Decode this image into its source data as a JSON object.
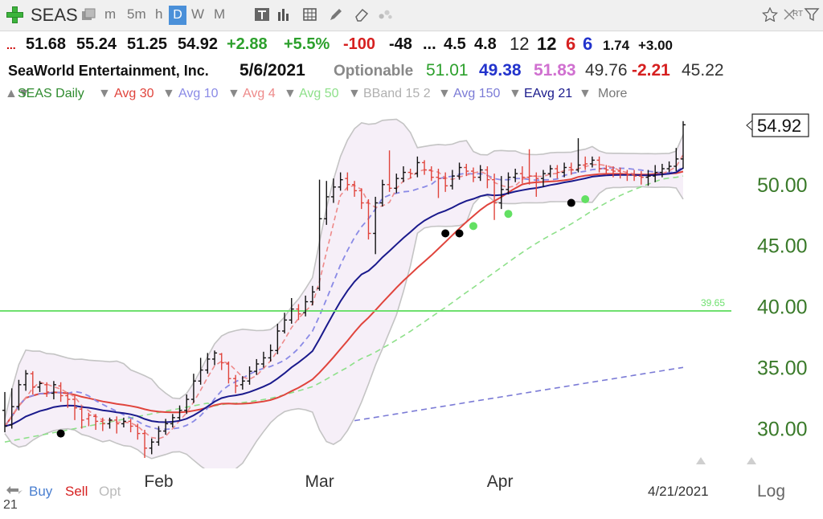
{
  "toolbar": {
    "symbol": "SEAS",
    "intervals": [
      "m",
      "5m",
      "h",
      "D",
      "W",
      "M"
    ],
    "active_interval": "D",
    "icons": [
      "plus-icon",
      "copy-icon",
      "text-tool-icon",
      "bar-chart-icon",
      "grid-icon",
      "pencil-icon",
      "eraser-icon",
      "dots-icon",
      "star-icon",
      "settings-icon",
      "rt-icon",
      "funnel-icon"
    ],
    "rt_label": "RT"
  },
  "quote": {
    "prefix": "...",
    "open": "51.68",
    "high": "55.24",
    "low": "51.25",
    "close": "54.92",
    "change": "+2.88",
    "change_pct": "+5.5%",
    "v1": "-100",
    "v2": "-48",
    "sep": "...",
    "v3": "4.5",
    "v4": "4.8",
    "v5": "12",
    "v6": "12",
    "v7": "6",
    "v8": "6",
    "v9": "1.74",
    "v10": "+3.00"
  },
  "info": {
    "company": "SeaWorld Entertainment, Inc.",
    "date": "5/6/2021",
    "optionable": "Optionable",
    "p1": "51.01",
    "p2": "49.38",
    "p3": "51.83",
    "p4": "49.76",
    "p5": "-2.21",
    "p6": "45.22"
  },
  "legend": {
    "items": [
      "SEAS Daily",
      "Avg 30",
      "Avg 10",
      "Avg 4",
      "Avg 50",
      "BBand 15 2",
      "Avg 150",
      "EAvg 21",
      "More"
    ],
    "colors": [
      "#2e8b2e",
      "#e0443c",
      "#8a8ae6",
      "#ee8a8a",
      "#8ee08a",
      "#b0b0b0",
      "#7b7bd6",
      "#1a1a8c",
      "#777777"
    ]
  },
  "chart_data": {
    "type": "candlestick",
    "y_axis": {
      "ticks": [
        "30.00",
        "35.00",
        "40.00",
        "45.00",
        "50.00"
      ],
      "min": 27.4,
      "max": 56.7,
      "side": "right"
    },
    "x_ticks": [
      "Feb",
      "Mar",
      "Apr"
    ],
    "last_price": "54.92",
    "hline": {
      "value": 39.65,
      "label": "39.65",
      "color": "#6fe06f"
    },
    "date_label": "4/21/2021",
    "bars": [
      [
        31.5,
        30.2,
        33.0,
        29.7,
        "up"
      ],
      [
        30.3,
        31.8,
        33.3,
        30.0,
        "up"
      ],
      [
        31.8,
        33.6,
        34.0,
        31.5,
        "up"
      ],
      [
        33.6,
        34.5,
        34.8,
        33.1,
        "up"
      ],
      [
        34.5,
        33.4,
        34.7,
        32.8,
        "down"
      ],
      [
        33.4,
        33.7,
        33.9,
        33.0,
        "up"
      ],
      [
        33.6,
        33.0,
        33.8,
        32.6,
        "down"
      ],
      [
        32.9,
        33.6,
        33.9,
        32.4,
        "up"
      ],
      [
        33.5,
        32.7,
        33.8,
        32.2,
        "down"
      ],
      [
        32.7,
        32.4,
        33.0,
        31.7,
        "down"
      ],
      [
        32.4,
        31.7,
        32.8,
        30.7,
        "down"
      ],
      [
        31.6,
        30.7,
        31.8,
        30.0,
        "down"
      ],
      [
        30.8,
        31.1,
        31.3,
        30.2,
        "down"
      ],
      [
        31.0,
        30.6,
        31.2,
        29.9,
        "down"
      ],
      [
        30.6,
        30.4,
        30.9,
        29.8,
        "down"
      ],
      [
        30.4,
        30.7,
        30.9,
        30.0,
        "up"
      ],
      [
        30.7,
        30.4,
        31.0,
        29.6,
        "down"
      ],
      [
        30.4,
        30.6,
        30.9,
        30.1,
        "up"
      ],
      [
        30.6,
        30.2,
        30.8,
        29.7,
        "down"
      ],
      [
        30.2,
        29.6,
        30.4,
        29.1,
        "down"
      ],
      [
        29.6,
        28.4,
        29.9,
        27.6,
        "down"
      ],
      [
        28.4,
        28.9,
        29.2,
        27.9,
        "up"
      ],
      [
        28.9,
        29.8,
        30.2,
        28.6,
        "up"
      ],
      [
        29.8,
        30.4,
        30.8,
        29.5,
        "up"
      ],
      [
        30.4,
        30.9,
        31.2,
        30.1,
        "up"
      ],
      [
        30.9,
        31.5,
        31.9,
        30.7,
        "up"
      ],
      [
        31.5,
        32.4,
        32.8,
        31.2,
        "up"
      ],
      [
        32.4,
        33.9,
        34.5,
        32.1,
        "up"
      ],
      [
        33.9,
        34.8,
        35.8,
        33.6,
        "up"
      ],
      [
        34.8,
        35.7,
        36.2,
        34.5,
        "up"
      ],
      [
        35.7,
        36.2,
        36.4,
        35.2,
        "up"
      ],
      [
        36.1,
        35.4,
        36.2,
        34.8,
        "down"
      ],
      [
        35.3,
        34.1,
        35.5,
        33.7,
        "down"
      ],
      [
        34.1,
        33.5,
        34.4,
        32.9,
        "down"
      ],
      [
        33.6,
        33.9,
        34.3,
        33.2,
        "up"
      ],
      [
        33.9,
        34.7,
        35.1,
        33.6,
        "up"
      ],
      [
        34.7,
        35.3,
        35.7,
        34.4,
        "up"
      ],
      [
        35.3,
        35.8,
        36.3,
        35.0,
        "up"
      ],
      [
        35.8,
        36.4,
        36.9,
        35.5,
        "up"
      ],
      [
        36.4,
        38.0,
        38.6,
        36.1,
        "up"
      ],
      [
        38.0,
        38.9,
        39.5,
        37.8,
        "up"
      ],
      [
        38.9,
        39.8,
        40.7,
        38.6,
        "up"
      ],
      [
        39.8,
        39.4,
        40.2,
        38.9,
        "down"
      ],
      [
        39.5,
        40.4,
        40.9,
        39.2,
        "up"
      ],
      [
        40.4,
        41.2,
        41.7,
        40.1,
        "up"
      ],
      [
        41.5,
        47.2,
        50.4,
        41.3,
        "up"
      ],
      [
        47.2,
        49.0,
        50.3,
        46.7,
        "up"
      ],
      [
        49.0,
        49.8,
        50.5,
        48.5,
        "up"
      ],
      [
        49.8,
        50.4,
        51.0,
        49.5,
        "up"
      ],
      [
        50.5,
        50.0,
        51.0,
        49.5,
        "down"
      ],
      [
        50.0,
        49.5,
        50.3,
        49.0,
        "down"
      ],
      [
        49.5,
        48.5,
        49.7,
        48.0,
        "down"
      ],
      [
        48.5,
        46.0,
        48.8,
        45.5,
        "down"
      ],
      [
        46.0,
        48.5,
        49.0,
        44.3,
        "up"
      ],
      [
        48.5,
        50.0,
        50.4,
        48.2,
        "up"
      ],
      [
        50.0,
        49.7,
        52.8,
        49.4,
        "down"
      ],
      [
        49.7,
        50.5,
        50.9,
        49.3,
        "up"
      ],
      [
        50.5,
        51.0,
        51.5,
        50.2,
        "up"
      ],
      [
        51.0,
        50.9,
        51.3,
        50.5,
        "down"
      ],
      [
        50.9,
        51.8,
        52.3,
        50.6,
        "up"
      ],
      [
        51.8,
        51.2,
        52.0,
        50.8,
        "down"
      ],
      [
        51.2,
        50.6,
        51.5,
        50.3,
        "down"
      ],
      [
        50.6,
        50.5,
        51.3,
        48.9,
        "down"
      ],
      [
        50.5,
        49.9,
        51.0,
        49.4,
        "down"
      ],
      [
        49.9,
        50.7,
        51.2,
        49.6,
        "up"
      ],
      [
        50.7,
        51.4,
        51.8,
        50.4,
        "up"
      ],
      [
        51.4,
        51.1,
        51.7,
        50.7,
        "down"
      ],
      [
        51.1,
        50.6,
        51.4,
        50.2,
        "down"
      ],
      [
        50.6,
        51.2,
        51.6,
        50.3,
        "up"
      ],
      [
        51.2,
        50.4,
        51.5,
        49.7,
        "down"
      ],
      [
        50.4,
        48.5,
        50.9,
        47.1,
        "down"
      ],
      [
        48.5,
        49.6,
        50.7,
        48.0,
        "up"
      ],
      [
        49.6,
        50.6,
        51.0,
        49.2,
        "up"
      ],
      [
        50.6,
        50.9,
        51.3,
        50.2,
        "up"
      ],
      [
        50.9,
        50.6,
        51.5,
        50.1,
        "down"
      ],
      [
        50.6,
        50.7,
        52.9,
        50.0,
        "down"
      ],
      [
        50.7,
        50.5,
        51.0,
        49.0,
        "down"
      ],
      [
        50.5,
        50.9,
        51.2,
        49.8,
        "up"
      ],
      [
        50.9,
        51.3,
        51.6,
        50.6,
        "up"
      ],
      [
        51.3,
        51.0,
        51.6,
        50.5,
        "down"
      ],
      [
        51.0,
        51.4,
        51.8,
        50.6,
        "up"
      ],
      [
        51.4,
        51.2,
        51.8,
        50.8,
        "down"
      ],
      [
        51.2,
        51.6,
        53.8,
        51.0,
        "up"
      ],
      [
        51.6,
        51.7,
        52.3,
        51.2,
        "down"
      ],
      [
        51.7,
        52.0,
        52.3,
        51.4,
        "up"
      ],
      [
        52.0,
        51.3,
        52.3,
        51.0,
        "down"
      ],
      [
        51.3,
        51.2,
        51.6,
        50.8,
        "down"
      ],
      [
        51.2,
        51.1,
        51.5,
        50.6,
        "down"
      ],
      [
        51.1,
        50.9,
        51.4,
        50.5,
        "down"
      ],
      [
        50.9,
        50.8,
        51.2,
        50.3,
        "down"
      ],
      [
        50.8,
        50.7,
        51.2,
        50.3,
        "down"
      ],
      [
        50.7,
        50.6,
        51.1,
        50.0,
        "down"
      ],
      [
        50.6,
        50.7,
        51.2,
        49.9,
        "up"
      ],
      [
        50.7,
        51.0,
        51.6,
        50.2,
        "up"
      ],
      [
        51.0,
        51.3,
        51.7,
        50.6,
        "up"
      ],
      [
        51.3,
        51.5,
        51.9,
        51.0,
        "up"
      ],
      [
        51.5,
        52.1,
        53.0,
        51.1,
        "up"
      ],
      [
        52.1,
        54.9,
        55.2,
        51.3,
        "up"
      ]
    ],
    "markers": [
      {
        "i": 8,
        "v": 29.6,
        "color": "#000000"
      },
      {
        "i": 63,
        "v": 46.0,
        "color": "#000000"
      },
      {
        "i": 65,
        "v": 46.0,
        "color": "#000000"
      },
      {
        "i": 67,
        "v": 46.6,
        "color": "#63e063"
      },
      {
        "i": 72,
        "v": 47.6,
        "color": "#63e063"
      },
      {
        "i": 81,
        "v": 48.5,
        "color": "#000000"
      },
      {
        "i": 83,
        "v": 48.8,
        "color": "#63e063"
      }
    ],
    "x_tick_index": {
      "Feb": 22,
      "Mar": 45,
      "Apr": 71
    }
  },
  "bottom": {
    "buy": "Buy",
    "sell": "Sell",
    "opt": "Opt",
    "log": "Log",
    "corner": "21"
  }
}
